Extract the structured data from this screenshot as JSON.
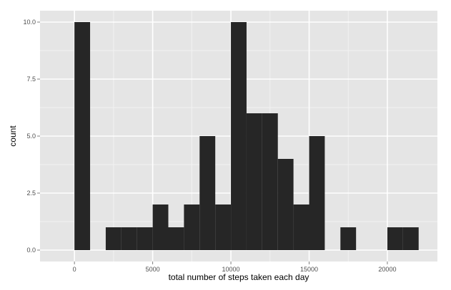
{
  "chart_data": {
    "type": "bar",
    "title": "",
    "xlabel": "total number of steps taken each day",
    "ylabel": "count",
    "xlim": [
      -2200,
      23200
    ],
    "ylim": [
      -0.5,
      10.5
    ],
    "x_ticks": [
      0,
      5000,
      10000,
      15000,
      20000
    ],
    "x_tick_labels": [
      "0",
      "5000",
      "10000",
      "15000",
      "20000"
    ],
    "y_ticks": [
      0,
      2.5,
      5,
      7.5,
      10
    ],
    "y_tick_labels": [
      "0.0",
      "2.5",
      "5.0",
      "7.5",
      "10.0"
    ],
    "bin_width": 1000,
    "bins": [
      {
        "x0": 0,
        "x1": 1000,
        "count": 10
      },
      {
        "x0": 1000,
        "x1": 2000,
        "count": 0
      },
      {
        "x0": 2000,
        "x1": 3000,
        "count": 1
      },
      {
        "x0": 3000,
        "x1": 4000,
        "count": 1
      },
      {
        "x0": 4000,
        "x1": 5000,
        "count": 1
      },
      {
        "x0": 5000,
        "x1": 6000,
        "count": 2
      },
      {
        "x0": 6000,
        "x1": 7000,
        "count": 1
      },
      {
        "x0": 7000,
        "x1": 8000,
        "count": 2
      },
      {
        "x0": 8000,
        "x1": 9000,
        "count": 5
      },
      {
        "x0": 9000,
        "x1": 10000,
        "count": 2
      },
      {
        "x0": 10000,
        "x1": 11000,
        "count": 10
      },
      {
        "x0": 11000,
        "x1": 12000,
        "count": 6
      },
      {
        "x0": 12000,
        "x1": 13000,
        "count": 6
      },
      {
        "x0": 13000,
        "x1": 14000,
        "count": 4
      },
      {
        "x0": 14000,
        "x1": 15000,
        "count": 2
      },
      {
        "x0": 15000,
        "x1": 16000,
        "count": 5
      },
      {
        "x0": 16000,
        "x1": 17000,
        "count": 0
      },
      {
        "x0": 17000,
        "x1": 18000,
        "count": 1
      },
      {
        "x0": 18000,
        "x1": 19000,
        "count": 0
      },
      {
        "x0": 19000,
        "x1": 20000,
        "count": 0
      },
      {
        "x0": 20000,
        "x1": 21000,
        "count": 1
      },
      {
        "x0": 21000,
        "x1": 22000,
        "count": 1
      }
    ],
    "grid": true,
    "colors": {
      "panel_background": "#e5e5e5",
      "grid_major": "#ffffff",
      "grid_minor": "#f2f2f2",
      "bar_fill": "#262626"
    }
  }
}
